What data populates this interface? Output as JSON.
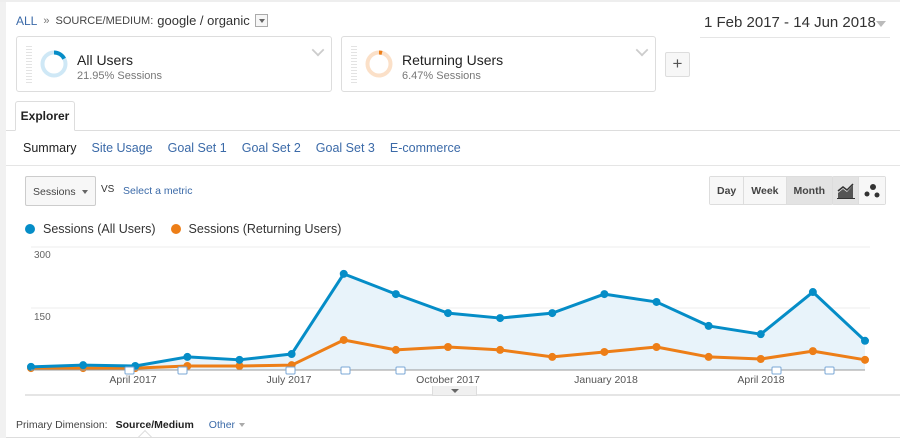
{
  "breadcrumb": {
    "root": "ALL",
    "separator": "»",
    "dimension_label": "SOURCE/MEDIUM:",
    "dimension_value": "google / organic"
  },
  "date_range": "1 Feb 2017 - 14 Jun 2018",
  "segments": [
    {
      "name": "All Users",
      "stat": "21.95% Sessions",
      "color": "#058dc7"
    },
    {
      "name": "Returning Users",
      "stat": "6.47% Sessions",
      "color": "#ed7e17"
    }
  ],
  "add_segment_label": "+",
  "tabs": [
    {
      "label": "Explorer"
    }
  ],
  "subtabs": [
    {
      "label": "Summary",
      "active": true
    },
    {
      "label": "Site Usage"
    },
    {
      "label": "Goal Set 1"
    },
    {
      "label": "Goal Set 2"
    },
    {
      "label": "Goal Set 3"
    },
    {
      "label": "E-commerce"
    }
  ],
  "metric_selector": {
    "value": "Sessions",
    "vs": "VS",
    "select_label": "Select a metric"
  },
  "granularity": [
    "Day",
    "Week",
    "Month"
  ],
  "granularity_selected": "Month",
  "chart_type_buttons": [
    "line-chart-icon",
    "motion-chart-icon"
  ],
  "primary_dimension": {
    "label": "Primary Dimension:",
    "current": "Source/Medium",
    "other": "Other"
  },
  "chart_data": {
    "type": "line",
    "title": "",
    "xlabel": "",
    "ylabel": "",
    "ylim": [
      0,
      300
    ],
    "y_ticks": [
      150,
      300
    ],
    "x_tick_labels": [
      "April 2017",
      "July 2017",
      "October 2017",
      "January 2018",
      "April 2018"
    ],
    "x": [
      "Feb 2017",
      "Mar 2017",
      "Apr 2017",
      "May 2017",
      "Jun 2017",
      "Jul 2017",
      "Aug 2017",
      "Sep 2017",
      "Oct 2017",
      "Nov 2017",
      "Dec 2017",
      "Jan 2018",
      "Feb 2018",
      "Mar 2018",
      "Apr 2018",
      "May 2018",
      "Jun 2018"
    ],
    "series": [
      {
        "name": "Sessions (All Users)",
        "color": "#058dc7",
        "values": [
          27,
          31,
          29,
          51,
          44,
          58,
          252,
          203,
          157,
          145,
          157,
          203,
          184,
          126,
          106,
          208,
          90
        ]
      },
      {
        "name": "Sessions (Returning Users)",
        "color": "#ed7e17",
        "values": [
          24,
          24,
          24,
          29,
          29,
          31,
          92,
          68,
          75,
          68,
          51,
          63,
          75,
          51,
          46,
          65,
          44
        ]
      }
    ],
    "legend_position": "top-left",
    "grid": true
  }
}
